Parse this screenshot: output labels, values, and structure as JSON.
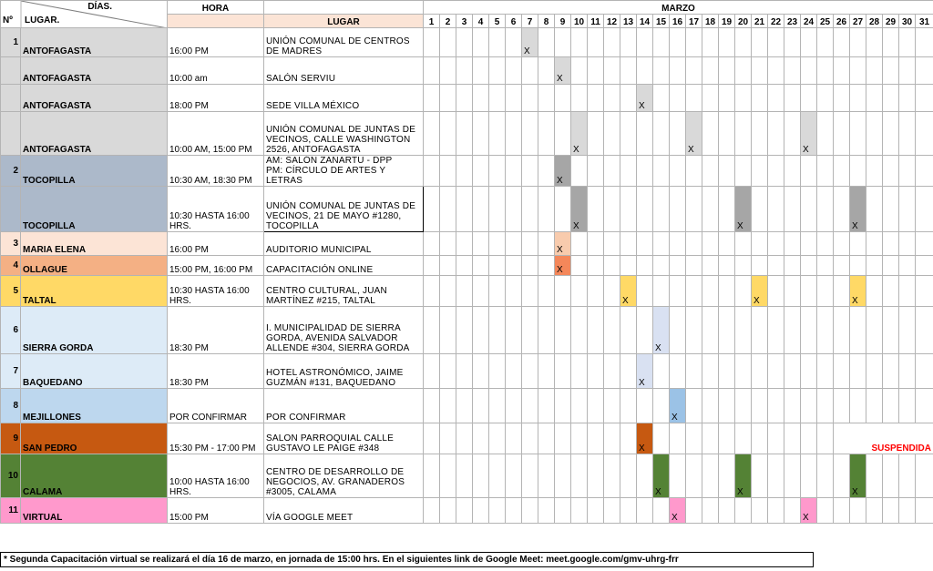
{
  "header": {
    "col_no": "Nº",
    "col_dias": "DÍAS.",
    "col_lugar": "LUGAR.",
    "col_hora": "HORA",
    "col_lugar_place": "LUGAR",
    "month": "MARZO",
    "days": [
      "1",
      "2",
      "3",
      "4",
      "5",
      "6",
      "7",
      "8",
      "9",
      "10",
      "11",
      "12",
      "13",
      "14",
      "15",
      "16",
      "17",
      "18",
      "19",
      "20",
      "21",
      "22",
      "23",
      "24",
      "25",
      "26",
      "27",
      "28",
      "29",
      "30",
      "31"
    ]
  },
  "mark_symbol": "X",
  "rows": [
    {
      "no": "1",
      "lugar": "ANTOFAGASTA",
      "hora": "16:00 PM",
      "place": "UNIÓN COMUNAL DE CENTROS DE MADRES",
      "color": "#d9d9d9",
      "marks": [
        7
      ]
    },
    {
      "no": "",
      "lugar": "ANTOFAGASTA",
      "hora": "10:00 am",
      "place": "SALÓN SERVIU",
      "color": "#d9d9d9",
      "marks": [
        9
      ]
    },
    {
      "no": "",
      "lugar": "ANTOFAGASTA",
      "hora": "18:00 PM",
      "place": "SEDE VILLA MÉXICO",
      "color": "#d9d9d9",
      "marks": [
        14
      ]
    },
    {
      "no": "",
      "lugar": "ANTOFAGASTA",
      "hora": "10:00 AM, 15:00 PM",
      "place": "UNIÓN COMUNAL DE JUNTAS DE VECINOS, CALLE WASHINGTON 2526, ANTOFAGASTA",
      "color": "#d9d9d9",
      "marks": [
        10,
        17,
        24
      ]
    },
    {
      "no": "2",
      "lugar": "TOCOPILLA",
      "hora": "10:30 AM, 18:30 PM",
      "place": "AM: SALÓN ZAÑARTU - DPP\nPM: CÍRCULO DE ARTES Y LETRAS",
      "color": "#acb9ca",
      "mark_color": "#a6a6a6",
      "marks": [
        9
      ]
    },
    {
      "no": "",
      "lugar": "TOCOPILLA",
      "hora": "10:30 HASTA 16:00 HRS.",
      "place": "UNIÓN COMUNAL DE JUNTAS DE VECINOS, 21 DE MAYO #1280, TOCOPILLA",
      "color": "#acb9ca",
      "mark_color": "#a6a6a6",
      "marks": [
        10,
        20,
        27
      ]
    },
    {
      "no": "3",
      "lugar": "MARIA ELENA",
      "hora": "16:00 PM",
      "place": "AUDITORIO MUNICIPAL",
      "color": "#fce4d6",
      "mark_color": "#f8cbad",
      "marks": [
        9
      ]
    },
    {
      "no": "4",
      "lugar": "OLLAGUE",
      "hora": "15:00 PM, 16:00 PM",
      "place": "CAPACITACIÓN ONLINE",
      "color": "#f4b084",
      "mark_color": "#f4875a",
      "marks": [
        9
      ]
    },
    {
      "no": "5",
      "lugar": "TALTAL",
      "hora": "10:30 HASTA 16:00 HRS.",
      "place": "CENTRO CULTURAL, JUAN MARTÍNEZ #215, TALTAL",
      "color": "#ffd966",
      "marks": [
        13,
        21,
        27
      ]
    },
    {
      "no": "6",
      "lugar": "SIERRA GORDA",
      "hora": "18:30 PM",
      "place": "I. MUNICIPALIDAD DE SIERRA GORDA, AVENIDA SALVADOR ALLENDE #304, SIERRA GORDA",
      "color": "#ddebf7",
      "mark_color": "#d9e1f2",
      "marks": [
        15
      ]
    },
    {
      "no": "7",
      "lugar": "BAQUEDANO",
      "hora": "18:30 PM",
      "place": "HOTEL ASTRONÓMICO, JAIME GUZMÁN #131, BAQUEDANO",
      "color": "#ddebf7",
      "mark_color": "#d9e1f2",
      "marks": [
        14
      ]
    },
    {
      "no": "8",
      "lugar": "MEJILLONES",
      "hora": "POR CONFIRMAR",
      "place": "POR CONFIRMAR",
      "color": "#bdd7ee",
      "mark_color": "#9bc2e6",
      "marks": [
        16
      ]
    },
    {
      "no": "9",
      "lugar": "SAN PEDRO",
      "hora": "15:30 PM - 17:00 PM",
      "place": "SALON PARROQUIAL CALLE GUSTAVO LE PAIGE #348",
      "color": "#c65911",
      "marks": [
        14
      ],
      "note": "SUSPENDIDA"
    },
    {
      "no": "10",
      "lugar": "CALAMA",
      "hora": "10:00 HASTA 16:00 HRS.",
      "place": "CENTRO DE DESARROLLO DE NEGOCIOS, AV. GRANADEROS #3005, CALAMA",
      "color": "#548235",
      "marks": [
        15,
        20,
        27
      ]
    },
    {
      "no": "11",
      "lugar": "VIRTUAL",
      "hora": "15:00 PM",
      "place": "VÍA GOOGLE MEET",
      "color": "#ff99cc",
      "marks": [
        16,
        24
      ]
    }
  ],
  "footnote": "* Segunda Capacitación virtual se realizará el día 16 de marzo, en jornada de 15:00 hrs. En el siguientes link de Google Meet: meet.google.com/gmv-uhrg-frr"
}
